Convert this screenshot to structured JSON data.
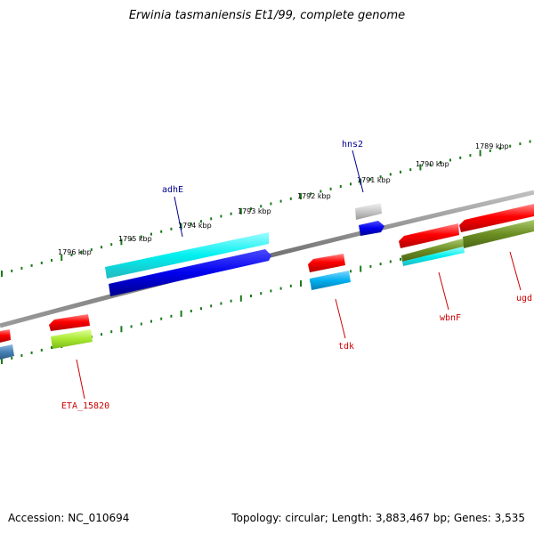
{
  "title": "Erwinia tasmaniensis Et1/99, complete genome",
  "footer": {
    "accession": "Accession: NC_010694",
    "summary": "Topology: circular; Length: 3,883,467 bp; Genes: 3,535"
  },
  "colors": {
    "backbone": "#808080",
    "tick": "#1a7a1a",
    "gene_label_top": "#00008b",
    "gene_label_bottom": "#cc0000"
  },
  "scale_labels": [
    "1796 kbp",
    "1795 kbp",
    "1794 kbp",
    "1793 kbp",
    "1792 kbp",
    "1791 kbp",
    "1790 kbp",
    "1789 kbp"
  ],
  "gene_labels": {
    "adhE": "adhE",
    "hns2": "hns2",
    "tdk": "tdk",
    "wbnF": "wbnF",
    "ugd": "ugd",
    "eta15820": "ETA_15820"
  }
}
